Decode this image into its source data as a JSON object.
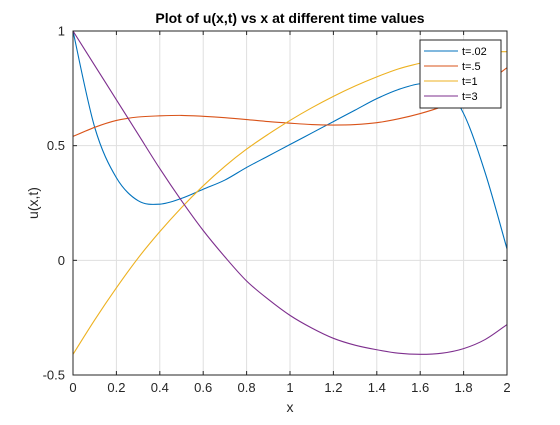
{
  "chart_data": {
    "type": "line",
    "title": "Plot of u(x,t) vs x at different time values",
    "xlabel": "x",
    "ylabel": "u(x,t)",
    "xlim": [
      0,
      2
    ],
    "ylim": [
      -0.5,
      1
    ],
    "xticks": [
      0,
      0.2,
      0.4,
      0.6,
      0.8,
      1,
      1.2,
      1.4,
      1.6,
      1.8,
      2
    ],
    "xtick_labels": [
      "0",
      "0.2",
      "0.4",
      "0.6",
      "0.8",
      "1",
      "1.2",
      "1.4",
      "1.6",
      "1.8",
      "2"
    ],
    "yticks": [
      -0.5,
      0,
      0.5,
      1
    ],
    "ytick_labels": [
      "-0.5",
      "0",
      "0.5",
      "1"
    ],
    "grid": true,
    "legend_position": "top-right",
    "x": [
      0,
      0.1,
      0.2,
      0.3,
      0.4,
      0.5,
      0.6,
      0.7,
      0.8,
      0.9,
      1.0,
      1.1,
      1.2,
      1.3,
      1.4,
      1.5,
      1.6,
      1.7,
      1.8,
      1.9,
      2.0
    ],
    "series": [
      {
        "name": "t=.02",
        "color": "#0072bd",
        "values": [
          1.0,
          0.58,
          0.36,
          0.26,
          0.245,
          0.27,
          0.31,
          0.35,
          0.405,
          0.455,
          0.505,
          0.555,
          0.605,
          0.655,
          0.705,
          0.745,
          0.77,
          0.765,
          0.64,
          0.38,
          0.05
        ]
      },
      {
        "name": "t=.5",
        "color": "#d95319",
        "values": [
          0.54,
          0.58,
          0.61,
          0.625,
          0.63,
          0.632,
          0.628,
          0.622,
          0.614,
          0.605,
          0.598,
          0.592,
          0.59,
          0.592,
          0.6,
          0.617,
          0.64,
          0.67,
          0.71,
          0.77,
          0.84
        ]
      },
      {
        "name": "t=1",
        "color": "#edb120",
        "values": [
          -0.41,
          -0.26,
          -0.12,
          0.01,
          0.125,
          0.23,
          0.325,
          0.41,
          0.485,
          0.55,
          0.61,
          0.665,
          0.715,
          0.76,
          0.8,
          0.835,
          0.86,
          0.885,
          0.9,
          0.908,
          0.91
        ]
      },
      {
        "name": "t=3",
        "color": "#7e2f8e",
        "values": [
          1.0,
          0.85,
          0.7,
          0.55,
          0.4,
          0.26,
          0.13,
          0.015,
          -0.09,
          -0.17,
          -0.24,
          -0.295,
          -0.34,
          -0.37,
          -0.39,
          -0.405,
          -0.41,
          -0.405,
          -0.385,
          -0.345,
          -0.28
        ]
      }
    ]
  }
}
